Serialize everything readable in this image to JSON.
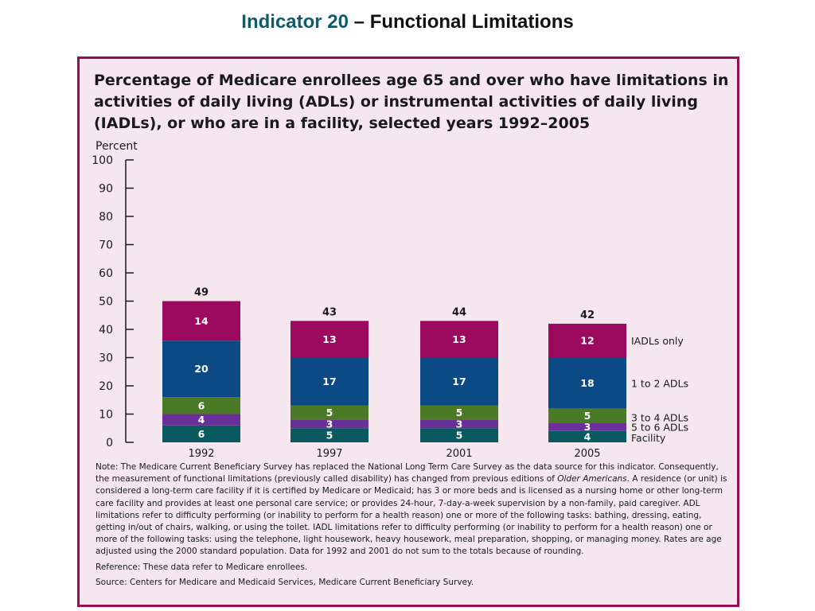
{
  "slide": {
    "title_accent": "Indicator 20",
    "title_rest": " – Functional Limitations"
  },
  "colors": {
    "iadl": "#9b0a5e",
    "adl12": "#0c4a86",
    "adl34": "#4a7a25",
    "adl56": "#6b2f9a",
    "facility": "#085a5e",
    "panel_border": "#9a0d55",
    "panel_bg": "#f6e7ef"
  },
  "chart_data": {
    "type": "bar",
    "stacked": true,
    "title": "Percentage of Medicare enrollees age 65 and over who have limitations in activities of daily living (ADLs) or instrumental activities of daily living (IADLs), or who are in a facility, selected years 1992–2005",
    "ylabel": "Percent",
    "xlabel": "",
    "ylim": [
      0,
      100
    ],
    "yticks": [
      0,
      10,
      20,
      30,
      40,
      50,
      60,
      70,
      80,
      90,
      100
    ],
    "categories": [
      "1992",
      "1997",
      "2001",
      "2005"
    ],
    "totals": [
      49,
      43,
      44,
      42
    ],
    "series": [
      {
        "name": "Facility",
        "color": "#085a5e",
        "values": [
          6,
          5,
          5,
          4
        ]
      },
      {
        "name": "5 to 6 ADLs",
        "color": "#6b2f9a",
        "values": [
          4,
          3,
          3,
          3
        ]
      },
      {
        "name": "3 to 4 ADLs",
        "color": "#4a7a25",
        "values": [
          6,
          5,
          5,
          5
        ]
      },
      {
        "name": "1 to 2 ADLs",
        "color": "#0c4a86",
        "values": [
          20,
          17,
          17,
          18
        ]
      },
      {
        "name": "IADLs only",
        "color": "#9b0a5e",
        "values": [
          14,
          13,
          13,
          12
        ]
      }
    ],
    "legend_position": "right of last bar"
  },
  "notes": {
    "note_part1": "Note: The Medicare Current Beneficiary Survey has replaced the National Long Term Care Survey as the data source for this indicator. Consequently, the measurement of functional limitations (previously called disability) has changed from previous editions of ",
    "note_italic": "Older Americans",
    "note_part2": ". A residence (or unit) is considered a long-term care facility if it is certified by Medicare or Medicaid; has 3 or more beds and is licensed as a nursing home or other long-term care facility and provides at least one personal care service; or provides 24-hour, 7-day-a-week supervision by a non-family, paid caregiver. ADL limitations refer to difficulty performing (or inability to perform for a health reason) one or more of the following tasks: bathing, dressing, eating, getting in/out of chairs, walking, or using the toilet. IADL limitations refer to difficulty performing (or inability to perform for a health reason) one or more of the following tasks: using the telephone, light housework, heavy housework, meal preparation, shopping, or managing money. Rates are age adjusted using the 2000 standard population. Data for 1992 and 2001 do not sum to the totals because of rounding.",
    "reference": "Reference: These data refer to Medicare enrollees.",
    "source": "Source: Centers for Medicare and Medicaid Services, Medicare Current Beneficiary Survey."
  }
}
